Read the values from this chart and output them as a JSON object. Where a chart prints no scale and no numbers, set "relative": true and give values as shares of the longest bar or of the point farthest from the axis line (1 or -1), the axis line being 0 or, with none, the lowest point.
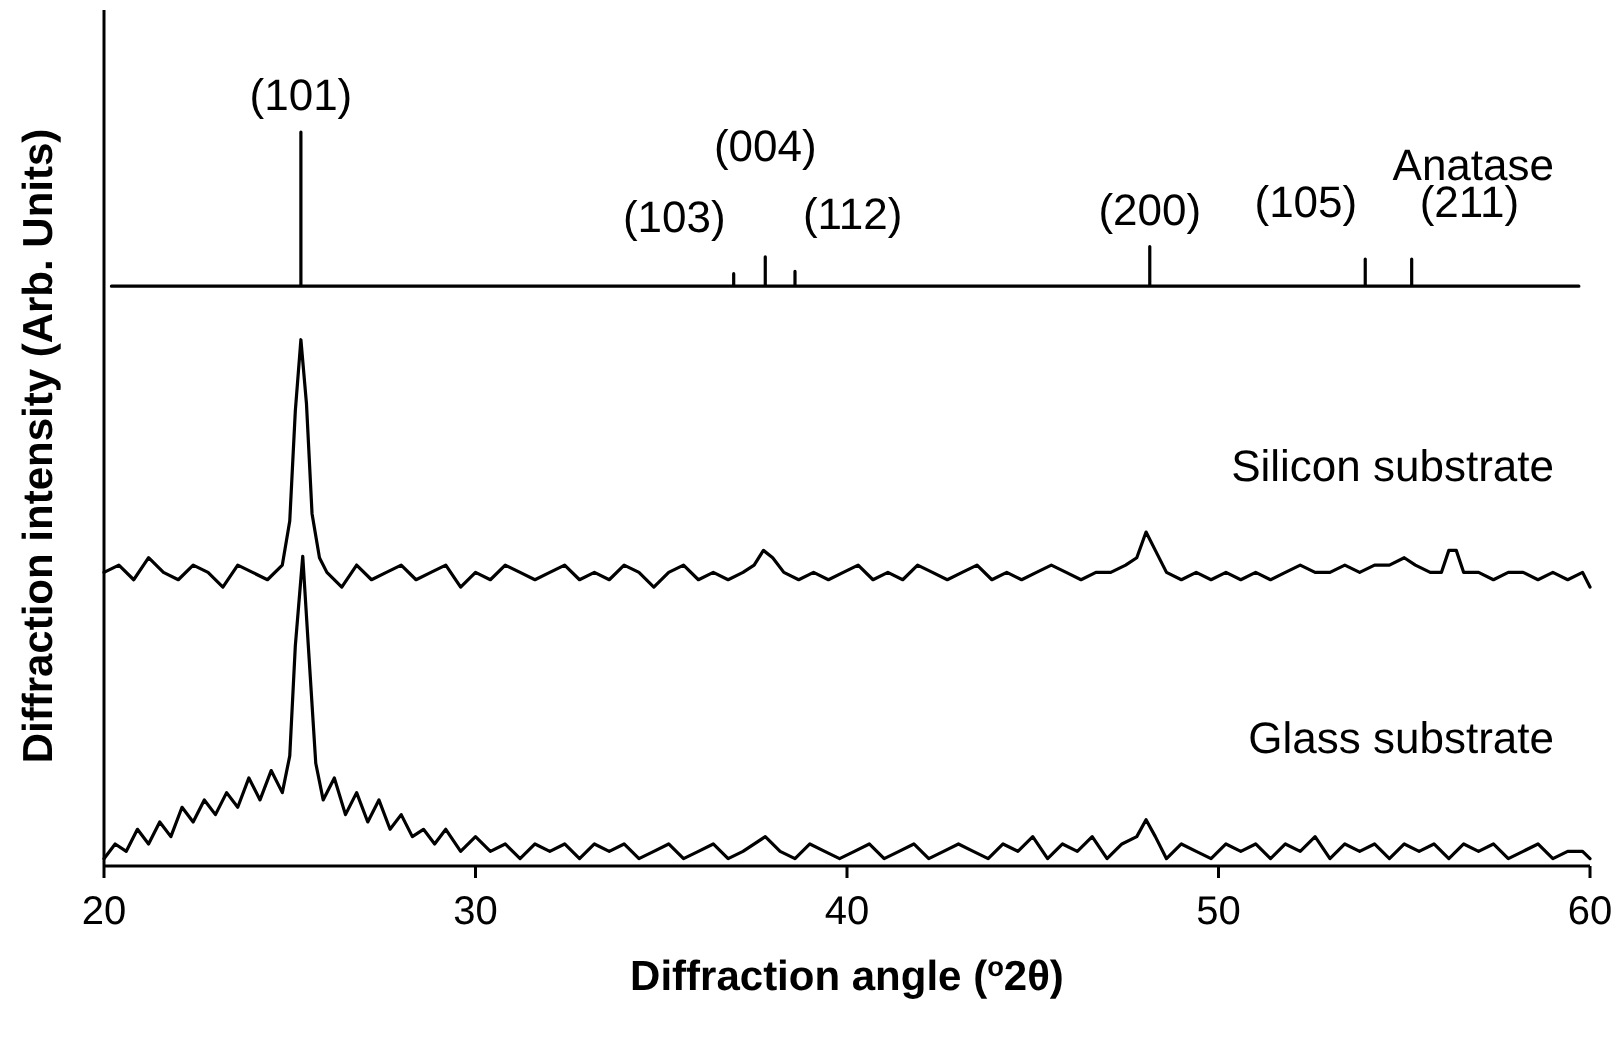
{
  "chart_data": {
    "type": "line",
    "xlabel": "Diffraction angle ($^{o}$2θ)",
    "ylabel": "Diffraction intensity (Arb. Units)",
    "relative": true,
    "xlim": [
      20,
      60
    ],
    "xticks": [
      20,
      30,
      40,
      50,
      60
    ],
    "annotations": [
      {
        "text": "(101)",
        "x": 25.3,
        "y": 1
      },
      {
        "text": "(103)",
        "x": 36.95,
        "y": 0.807
      },
      {
        "text": "(004)",
        "x": 37.8,
        "y": 0.83
      },
      {
        "text": "(112)",
        "x": 38.6,
        "y": 0.81
      },
      {
        "text": "(200)",
        "x": 48.15,
        "y": 0.844
      },
      {
        "text": "(105)",
        "x": 53.95,
        "y": 0.827
      },
      {
        "text": "(211)",
        "x": 55.2,
        "y": 0.827
      }
    ],
    "series": [
      {
        "name": "Anatase",
        "color": "#000000",
        "x": [
          20.2,
          25.3,
          25.3,
          25.3,
          36.95,
          36.95,
          36.95,
          37.8,
          37.8,
          37.8,
          38.6,
          38.6,
          38.6,
          48.15,
          48.15,
          48.15,
          53.95,
          53.95,
          53.95,
          55.2,
          55.2,
          55.2,
          59.7
        ],
        "values": [
          0.79,
          0.79,
          1,
          0.79,
          0.79,
          0.807,
          0.79,
          0.79,
          0.83,
          0.79,
          0.79,
          0.81,
          0.79,
          0.79,
          0.844,
          0.79,
          0.79,
          0.827,
          0.79,
          0.79,
          0.827,
          0.79,
          0.79
        ]
      },
      {
        "name": "Silicon substrate",
        "color": "#000000",
        "x": [
          20.0,
          20.4,
          20.8,
          21.2,
          21.6,
          22.0,
          22.4,
          22.8,
          23.2,
          23.6,
          24.0,
          24.4,
          24.8,
          25.0,
          25.15,
          25.3,
          25.45,
          25.6,
          25.8,
          26.0,
          26.4,
          26.8,
          27.2,
          27.6,
          28.0,
          28.4,
          28.8,
          29.2,
          29.6,
          30.0,
          30.4,
          30.8,
          31.2,
          31.6,
          32.0,
          32.4,
          32.8,
          33.2,
          33.6,
          34.0,
          34.4,
          34.8,
          35.2,
          35.6,
          36.0,
          36.4,
          36.8,
          37.2,
          37.5,
          37.75,
          38.0,
          38.3,
          38.7,
          39.1,
          39.5,
          39.9,
          40.3,
          40.7,
          41.1,
          41.5,
          41.9,
          42.3,
          42.7,
          43.1,
          43.5,
          43.9,
          44.3,
          44.7,
          45.1,
          45.5,
          45.9,
          46.3,
          46.7,
          47.1,
          47.5,
          47.8,
          48.05,
          48.3,
          48.6,
          49.0,
          49.4,
          49.8,
          50.2,
          50.6,
          51.0,
          51.4,
          51.8,
          52.2,
          52.6,
          53.0,
          53.4,
          53.8,
          54.2,
          54.6,
          55.0,
          55.3,
          55.7,
          56.0,
          56.2,
          56.4,
          56.6,
          57.0,
          57.4,
          57.8,
          58.2,
          58.6,
          59.0,
          59.4,
          59.8,
          60.0
        ],
        "values": [
          0.4,
          0.41,
          0.39,
          0.42,
          0.4,
          0.39,
          0.41,
          0.4,
          0.38,
          0.41,
          0.4,
          0.39,
          0.41,
          0.47,
          0.62,
          0.717,
          0.63,
          0.48,
          0.42,
          0.4,
          0.38,
          0.41,
          0.39,
          0.4,
          0.41,
          0.39,
          0.4,
          0.41,
          0.38,
          0.4,
          0.39,
          0.41,
          0.4,
          0.39,
          0.4,
          0.41,
          0.39,
          0.4,
          0.39,
          0.41,
          0.4,
          0.38,
          0.4,
          0.41,
          0.39,
          0.4,
          0.39,
          0.4,
          0.41,
          0.43,
          0.42,
          0.4,
          0.39,
          0.4,
          0.39,
          0.4,
          0.41,
          0.39,
          0.4,
          0.39,
          0.41,
          0.4,
          0.39,
          0.4,
          0.41,
          0.39,
          0.4,
          0.39,
          0.4,
          0.41,
          0.4,
          0.39,
          0.4,
          0.4,
          0.41,
          0.42,
          0.455,
          0.43,
          0.4,
          0.39,
          0.4,
          0.39,
          0.4,
          0.39,
          0.4,
          0.39,
          0.4,
          0.41,
          0.4,
          0.4,
          0.41,
          0.4,
          0.41,
          0.41,
          0.42,
          0.41,
          0.4,
          0.4,
          0.43,
          0.43,
          0.4,
          0.4,
          0.39,
          0.4,
          0.4,
          0.39,
          0.4,
          0.39,
          0.4,
          0.38
        ]
      },
      {
        "name": "Glass substrate",
        "color": "#000000",
        "x": [
          20.0,
          20.3,
          20.6,
          20.9,
          21.2,
          21.5,
          21.8,
          22.1,
          22.4,
          22.7,
          23.0,
          23.3,
          23.6,
          23.9,
          24.2,
          24.5,
          24.8,
          25.0,
          25.15,
          25.35,
          25.5,
          25.7,
          25.9,
          26.2,
          26.5,
          26.8,
          27.1,
          27.4,
          27.7,
          28.0,
          28.3,
          28.6,
          28.9,
          29.2,
          29.6,
          30.0,
          30.4,
          30.8,
          31.2,
          31.6,
          32.0,
          32.4,
          32.8,
          33.2,
          33.6,
          34.0,
          34.4,
          34.8,
          35.2,
          35.6,
          36.0,
          36.4,
          36.8,
          37.2,
          37.8,
          38.2,
          38.6,
          39.0,
          39.4,
          39.8,
          40.2,
          40.6,
          41.0,
          41.4,
          41.8,
          42.2,
          42.6,
          43.0,
          43.4,
          43.8,
          44.2,
          44.6,
          45.0,
          45.4,
          45.8,
          46.2,
          46.6,
          47.0,
          47.4,
          47.8,
          48.05,
          48.3,
          48.6,
          49.0,
          49.4,
          49.8,
          50.2,
          50.6,
          51.0,
          51.4,
          51.8,
          52.2,
          52.6,
          53.0,
          53.4,
          53.8,
          54.2,
          54.6,
          55.0,
          55.4,
          55.8,
          56.2,
          56.6,
          57.0,
          57.4,
          57.8,
          58.2,
          58.6,
          59.0,
          59.4,
          59.8,
          60.0
        ],
        "values": [
          0.01,
          0.03,
          0.02,
          0.05,
          0.03,
          0.06,
          0.04,
          0.08,
          0.06,
          0.09,
          0.07,
          0.1,
          0.08,
          0.12,
          0.09,
          0.13,
          0.1,
          0.15,
          0.3,
          0.422,
          0.3,
          0.14,
          0.09,
          0.12,
          0.07,
          0.1,
          0.06,
          0.09,
          0.05,
          0.07,
          0.04,
          0.05,
          0.03,
          0.05,
          0.02,
          0.04,
          0.02,
          0.03,
          0.01,
          0.03,
          0.02,
          0.03,
          0.01,
          0.03,
          0.02,
          0.03,
          0.01,
          0.02,
          0.03,
          0.01,
          0.02,
          0.03,
          0.01,
          0.02,
          0.04,
          0.02,
          0.01,
          0.03,
          0.02,
          0.01,
          0.02,
          0.03,
          0.01,
          0.02,
          0.03,
          0.01,
          0.02,
          0.03,
          0.02,
          0.01,
          0.03,
          0.02,
          0.04,
          0.01,
          0.03,
          0.02,
          0.04,
          0.01,
          0.03,
          0.04,
          0.063,
          0.04,
          0.01,
          0.03,
          0.02,
          0.01,
          0.03,
          0.02,
          0.03,
          0.01,
          0.03,
          0.02,
          0.04,
          0.01,
          0.03,
          0.02,
          0.03,
          0.01,
          0.03,
          0.02,
          0.03,
          0.01,
          0.03,
          0.02,
          0.03,
          0.01,
          0.02,
          0.03,
          0.01,
          0.02,
          0.02,
          0.01
        ]
      }
    ]
  }
}
